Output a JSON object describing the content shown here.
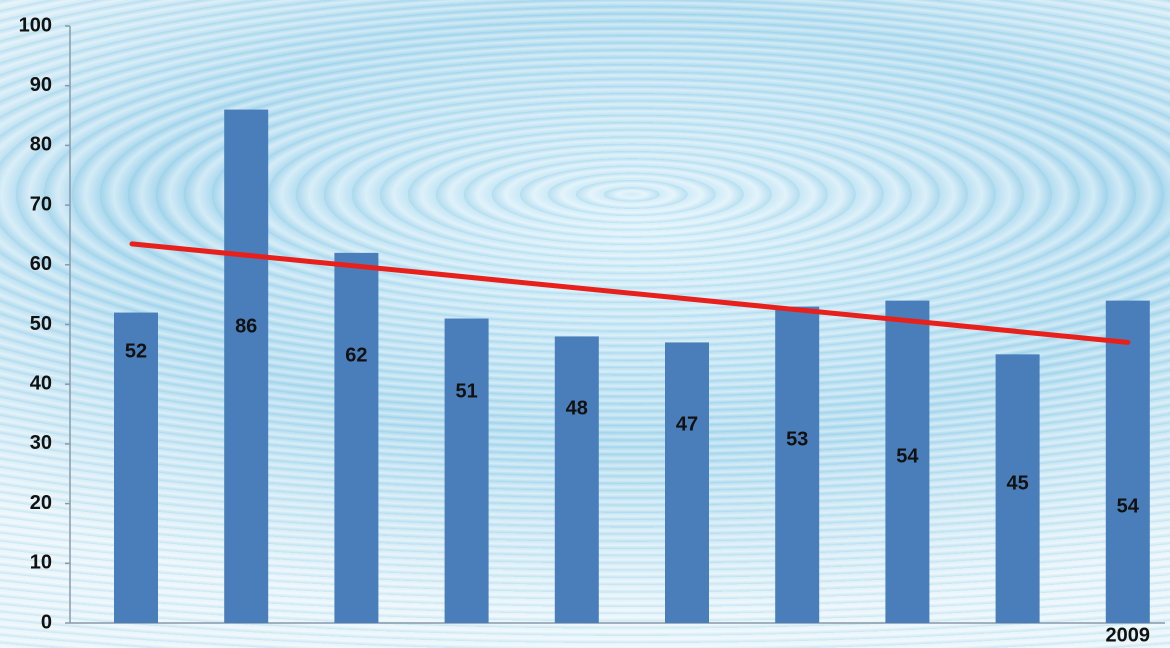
{
  "chart_data": {
    "type": "bar",
    "categories": [
      null,
      null,
      null,
      null,
      null,
      null,
      null,
      null,
      null,
      "2009"
    ],
    "values": [
      52,
      86,
      62,
      51,
      48,
      47,
      53,
      54,
      45,
      54
    ],
    "color": "#4a7ebb",
    "trend": {
      "start": 63.5,
      "end": 47,
      "color": "#e8201c"
    },
    "ylim": [
      0,
      100
    ],
    "yticks": [
      0,
      10,
      20,
      30,
      40,
      50,
      60,
      70,
      80,
      90,
      100
    ]
  }
}
